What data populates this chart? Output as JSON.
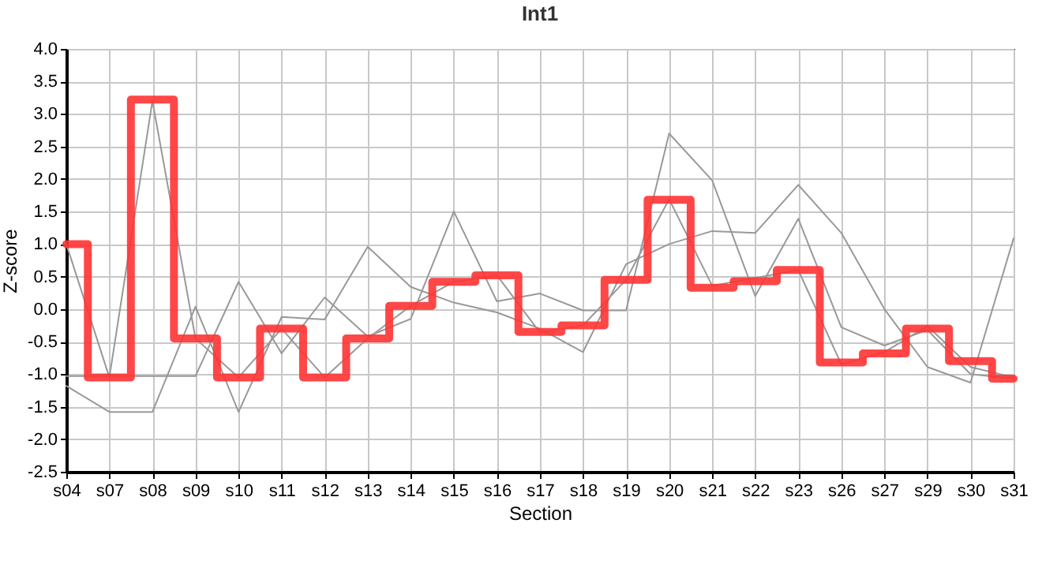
{
  "chart_data": {
    "type": "line",
    "title": "Int1",
    "xlabel": "Section",
    "ylabel": "Z-score",
    "categories": [
      "s04",
      "s07",
      "s08",
      "s09",
      "s10",
      "s11",
      "s12",
      "s13",
      "s14",
      "s15",
      "s16",
      "s17",
      "s18",
      "s19",
      "s20",
      "s21",
      "s22",
      "s23",
      "s26",
      "s27",
      "s29",
      "s30",
      "s31"
    ],
    "series": [
      {
        "color": "#999999",
        "values": [
          1.0,
          -1.05,
          3.2,
          -0.45,
          -1.05,
          -0.3,
          -1.05,
          -0.45,
          0.05,
          0.42,
          0.52,
          -0.36,
          -0.25,
          0.45,
          1.69,
          0.36,
          0.48,
          0.6,
          -0.85,
          -0.66,
          -0.26,
          -0.89,
          -1.05
        ]
      },
      {
        "color": "#999999",
        "values": [
          -1.03,
          -1.03,
          -1.03,
          -1.03,
          0.42,
          -0.68,
          0.18,
          -0.42,
          -0.15,
          1.5,
          0.12,
          0.24,
          -0.02,
          -0.02,
          2.7,
          1.98,
          0.2,
          1.39,
          -0.28,
          -0.56,
          -0.32,
          -1.0,
          -1.07
        ]
      },
      {
        "color": "#999999",
        "values": [
          -1.18,
          -1.58,
          -1.58,
          0.04,
          -1.58,
          -0.12,
          -0.16,
          0.96,
          0.34,
          0.1,
          -0.05,
          -0.3,
          -0.66,
          0.69,
          1.0,
          1.2,
          1.17,
          1.91,
          1.17,
          0.0,
          -0.89,
          -1.13,
          1.09
        ]
      },
      {
        "type": "step",
        "color": "#ff3333",
        "values": [
          1.0,
          -1.05,
          3.22,
          -0.45,
          -1.05,
          -0.3,
          -1.05,
          -0.45,
          0.05,
          0.42,
          0.52,
          -0.35,
          -0.25,
          0.45,
          1.68,
          0.33,
          0.43,
          0.6,
          -0.82,
          -0.68,
          -0.3,
          -0.8,
          -1.07
        ]
      }
    ],
    "ylim": [
      -2.5,
      4.0
    ],
    "yticks": [
      {
        "value": -2.5,
        "label": "-2.5"
      },
      {
        "value": -2,
        "label": "-2.0"
      },
      -1.5,
      {
        "value": -1,
        "label": "-1.0"
      },
      -0.5,
      {
        "value": 0,
        "label": "0.0"
      },
      0.5,
      {
        "value": 1,
        "label": "1.0"
      },
      1.5,
      {
        "value": 2,
        "label": "2.0"
      },
      2.5,
      {
        "value": 3,
        "label": "3.0"
      },
      3.5,
      {
        "value": 4,
        "label": "4.0"
      }
    ],
    "grid": true,
    "marker": "none",
    "line_style": "solid"
  }
}
